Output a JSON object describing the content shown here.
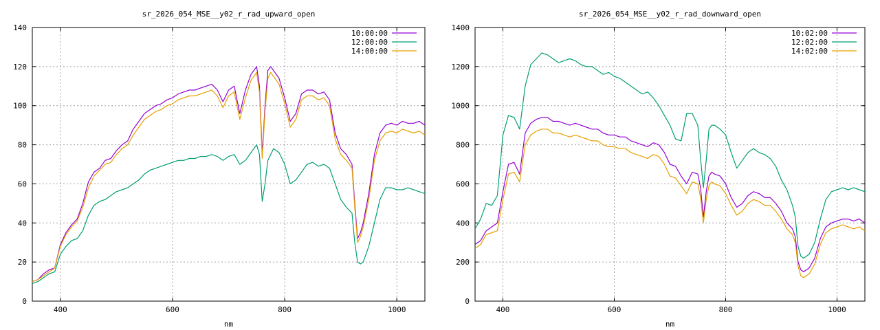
{
  "chart_data": [
    {
      "type": "line",
      "title": "sr_2026_054_MSE__y02_r_rad_upward_open",
      "xlabel": "nm",
      "ylabel": "",
      "xlim": [
        350,
        1050
      ],
      "ylim": [
        0,
        140
      ],
      "xticks": [
        400,
        600,
        800,
        1000
      ],
      "yticks": [
        0,
        20,
        40,
        60,
        80,
        100,
        120,
        140
      ],
      "grid": true,
      "legend": "top-right",
      "series": [
        {
          "name": "10:00:00",
          "color": "#9400d3",
          "x": [
            350,
            360,
            370,
            380,
            390,
            400,
            410,
            420,
            430,
            440,
            450,
            460,
            470,
            480,
            490,
            500,
            510,
            520,
            530,
            540,
            550,
            560,
            570,
            580,
            590,
            600,
            610,
            620,
            630,
            640,
            650,
            660,
            670,
            680,
            690,
            700,
            710,
            720,
            730,
            740,
            750,
            755,
            760,
            765,
            770,
            775,
            780,
            790,
            800,
            810,
            820,
            830,
            840,
            850,
            860,
            870,
            880,
            890,
            900,
            910,
            920,
            925,
            930,
            935,
            940,
            950,
            960,
            970,
            980,
            990,
            1000,
            1010,
            1020,
            1030,
            1040,
            1050
          ],
          "y": [
            10,
            11,
            14,
            16,
            17,
            29,
            35,
            39,
            42,
            50,
            61,
            66,
            68,
            72,
            73,
            77,
            80,
            82,
            88,
            92,
            96,
            98,
            100,
            101,
            103,
            104,
            106,
            107,
            108,
            108,
            109,
            110,
            111,
            108,
            102,
            108,
            110,
            96,
            108,
            116,
            120,
            110,
            75,
            100,
            118,
            120,
            118,
            114,
            104,
            92,
            96,
            106,
            108,
            108,
            106,
            107,
            103,
            86,
            78,
            75,
            70,
            50,
            32,
            35,
            40,
            55,
            75,
            86,
            90,
            91,
            90,
            92,
            91,
            91,
            92,
            90
          ]
        },
        {
          "name": "12:00:00",
          "color": "#009e73",
          "x": [
            350,
            360,
            370,
            380,
            390,
            400,
            410,
            420,
            430,
            440,
            450,
            460,
            470,
            480,
            490,
            500,
            510,
            520,
            530,
            540,
            550,
            560,
            570,
            580,
            590,
            600,
            610,
            620,
            630,
            640,
            650,
            660,
            670,
            680,
            690,
            700,
            710,
            720,
            730,
            740,
            750,
            755,
            760,
            765,
            770,
            775,
            780,
            790,
            800,
            810,
            820,
            830,
            840,
            850,
            860,
            870,
            880,
            890,
            900,
            910,
            920,
            925,
            930,
            935,
            940,
            950,
            960,
            970,
            980,
            990,
            1000,
            1010,
            1020,
            1030,
            1040,
            1050
          ],
          "y": [
            9,
            10,
            12,
            14,
            15,
            24,
            28,
            31,
            32,
            36,
            44,
            49,
            51,
            52,
            54,
            56,
            57,
            58,
            60,
            62,
            65,
            67,
            68,
            69,
            70,
            71,
            72,
            72,
            73,
            73,
            74,
            74,
            75,
            74,
            72,
            74,
            75,
            70,
            72,
            76,
            80,
            75,
            51,
            60,
            72,
            75,
            78,
            76,
            70,
            60,
            62,
            66,
            70,
            71,
            69,
            70,
            68,
            60,
            52,
            48,
            45,
            30,
            20,
            19,
            20,
            28,
            40,
            52,
            58,
            58,
            57,
            57,
            58,
            57,
            56,
            55
          ]
        },
        {
          "name": "14:00:00",
          "color": "#e69f00",
          "x": [
            350,
            360,
            370,
            380,
            390,
            400,
            410,
            420,
            430,
            440,
            450,
            460,
            470,
            480,
            490,
            500,
            510,
            520,
            530,
            540,
            550,
            560,
            570,
            580,
            590,
            600,
            610,
            620,
            630,
            640,
            650,
            660,
            670,
            680,
            690,
            700,
            710,
            720,
            730,
            740,
            750,
            755,
            760,
            765,
            770,
            775,
            780,
            790,
            800,
            810,
            820,
            830,
            840,
            850,
            860,
            870,
            880,
            890,
            900,
            910,
            920,
            925,
            930,
            935,
            940,
            950,
            960,
            970,
            980,
            990,
            1000,
            1010,
            1020,
            1030,
            1040,
            1050
          ],
          "y": [
            10,
            11,
            13,
            15,
            17,
            28,
            34,
            38,
            41,
            48,
            58,
            64,
            67,
            70,
            71,
            75,
            78,
            80,
            85,
            89,
            93,
            95,
            97,
            98,
            100,
            101,
            103,
            104,
            105,
            105,
            106,
            107,
            108,
            105,
            99,
            105,
            107,
            93,
            104,
            113,
            117,
            107,
            73,
            97,
            114,
            117,
            115,
            111,
            101,
            89,
            93,
            103,
            105,
            105,
            103,
            104,
            100,
            83,
            75,
            72,
            68,
            48,
            30,
            33,
            38,
            52,
            72,
            82,
            86,
            87,
            86,
            88,
            87,
            86,
            87,
            85
          ]
        }
      ]
    },
    {
      "type": "line",
      "title": "sr_2026_054_MSE__y02_r_rad_downward_open",
      "xlabel": "nm",
      "ylabel": "",
      "xlim": [
        350,
        1050
      ],
      "ylim": [
        0,
        1400
      ],
      "xticks": [
        400,
        600,
        800,
        1000
      ],
      "yticks": [
        0,
        200,
        400,
        600,
        800,
        1000,
        1200,
        1400
      ],
      "grid": true,
      "legend": "top-right",
      "series": [
        {
          "name": "10:02:00",
          "color": "#9400d3",
          "x": [
            350,
            360,
            370,
            380,
            390,
            400,
            410,
            420,
            430,
            440,
            450,
            460,
            470,
            480,
            490,
            500,
            510,
            520,
            530,
            540,
            550,
            560,
            570,
            580,
            590,
            600,
            610,
            620,
            630,
            640,
            650,
            660,
            670,
            680,
            690,
            700,
            710,
            720,
            730,
            740,
            750,
            755,
            760,
            765,
            770,
            775,
            780,
            790,
            800,
            810,
            820,
            830,
            840,
            850,
            860,
            870,
            880,
            890,
            900,
            910,
            920,
            925,
            930,
            935,
            940,
            950,
            960,
            970,
            980,
            990,
            1000,
            1010,
            1020,
            1030,
            1040,
            1050
          ],
          "y": [
            290,
            310,
            360,
            380,
            400,
            560,
            700,
            710,
            650,
            860,
            910,
            930,
            940,
            940,
            920,
            920,
            910,
            900,
            910,
            900,
            890,
            880,
            880,
            860,
            850,
            850,
            840,
            840,
            820,
            810,
            800,
            790,
            810,
            800,
            760,
            700,
            690,
            640,
            600,
            660,
            650,
            580,
            430,
            560,
            640,
            660,
            650,
            640,
            600,
            530,
            480,
            500,
            540,
            560,
            550,
            530,
            530,
            500,
            460,
            400,
            370,
            330,
            200,
            160,
            150,
            170,
            220,
            320,
            380,
            400,
            410,
            420,
            420,
            410,
            420,
            400
          ]
        },
        {
          "name": "12:02:00",
          "color": "#009e73",
          "x": [
            350,
            360,
            370,
            380,
            390,
            400,
            410,
            420,
            430,
            440,
            450,
            460,
            470,
            480,
            490,
            500,
            510,
            520,
            530,
            540,
            550,
            560,
            570,
            580,
            590,
            600,
            610,
            620,
            630,
            640,
            650,
            660,
            670,
            680,
            690,
            700,
            710,
            720,
            730,
            740,
            750,
            755,
            760,
            765,
            770,
            775,
            780,
            790,
            800,
            810,
            820,
            830,
            840,
            850,
            860,
            870,
            880,
            890,
            900,
            910,
            920,
            925,
            930,
            935,
            940,
            950,
            960,
            970,
            980,
            990,
            1000,
            1010,
            1020,
            1030,
            1040,
            1050
          ],
          "y": [
            370,
            420,
            500,
            490,
            540,
            850,
            950,
            940,
            880,
            1100,
            1210,
            1240,
            1270,
            1260,
            1240,
            1220,
            1230,
            1240,
            1230,
            1210,
            1200,
            1200,
            1180,
            1160,
            1170,
            1150,
            1140,
            1120,
            1100,
            1080,
            1060,
            1070,
            1040,
            1000,
            950,
            900,
            830,
            820,
            960,
            960,
            900,
            730,
            580,
            720,
            880,
            900,
            900,
            880,
            850,
            760,
            680,
            720,
            760,
            780,
            760,
            750,
            730,
            690,
            620,
            570,
            490,
            430,
            280,
            230,
            220,
            240,
            300,
            420,
            520,
            560,
            570,
            580,
            570,
            580,
            570,
            560
          ]
        },
        {
          "name": "14:02:00",
          "color": "#e69f00",
          "x": [
            350,
            360,
            370,
            380,
            390,
            400,
            410,
            420,
            430,
            440,
            450,
            460,
            470,
            480,
            490,
            500,
            510,
            520,
            530,
            540,
            550,
            560,
            570,
            580,
            590,
            600,
            610,
            620,
            630,
            640,
            650,
            660,
            670,
            680,
            690,
            700,
            710,
            720,
            730,
            740,
            750,
            755,
            760,
            765,
            770,
            775,
            780,
            790,
            800,
            810,
            820,
            830,
            840,
            850,
            860,
            870,
            880,
            890,
            900,
            910,
            920,
            925,
            930,
            935,
            940,
            950,
            960,
            970,
            980,
            990,
            1000,
            1010,
            1020,
            1030,
            1040,
            1050
          ],
          "y": [
            270,
            290,
            340,
            350,
            360,
            520,
            650,
            660,
            610,
            800,
            850,
            870,
            880,
            880,
            860,
            860,
            850,
            840,
            850,
            840,
            830,
            820,
            820,
            800,
            790,
            790,
            780,
            780,
            760,
            750,
            740,
            730,
            750,
            740,
            700,
            640,
            630,
            590,
            550,
            610,
            600,
            530,
            400,
            520,
            590,
            610,
            600,
            590,
            550,
            490,
            440,
            460,
            500,
            520,
            510,
            490,
            490,
            460,
            420,
            370,
            340,
            300,
            180,
            130,
            120,
            140,
            190,
            290,
            350,
            370,
            380,
            390,
            380,
            370,
            380,
            360
          ]
        }
      ]
    }
  ]
}
